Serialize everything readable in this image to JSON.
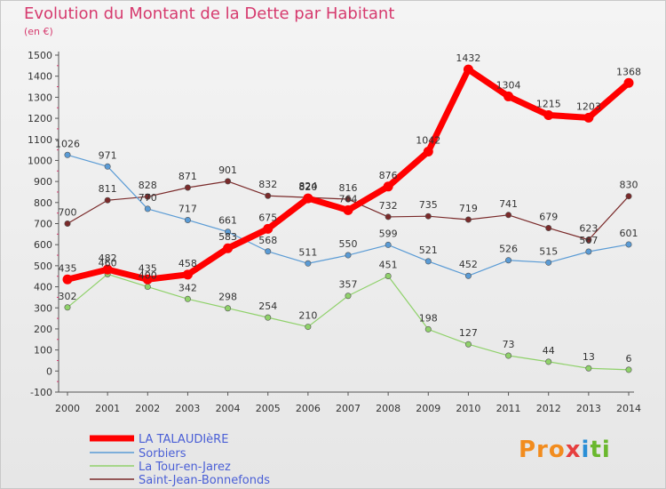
{
  "chart_data": {
    "type": "line",
    "title": "Evolution du Montant de la Dette par Habitant",
    "subtitle": "(en €)",
    "x": [
      "2000",
      "2001",
      "2002",
      "2003",
      "2004",
      "2005",
      "2006",
      "2007",
      "2008",
      "2009",
      "2010",
      "2011",
      "2012",
      "2013",
      "2014"
    ],
    "ylim": [
      -100,
      1500
    ],
    "yticks": [
      -100,
      0,
      100,
      200,
      300,
      400,
      500,
      600,
      700,
      800,
      900,
      1000,
      1100,
      1200,
      1300,
      1400,
      1500
    ],
    "grid": false,
    "legend_position": "bottom-left",
    "series": [
      {
        "name": "LA TALAUDIèRE",
        "color": "#ff0000",
        "values": [
          435,
          482,
          435,
          458,
          583,
          675,
          820,
          764,
          876,
          1042,
          1432,
          1304,
          1215,
          1203,
          1368
        ]
      },
      {
        "name": "Sorbiers",
        "color": "#5a9bd5",
        "values": [
          1026,
          971,
          770,
          717,
          661,
          568,
          511,
          550,
          599,
          521,
          452,
          526,
          515,
          567,
          601
        ]
      },
      {
        "name": "La Tour-en-Jarez",
        "color": "#8fd16a",
        "values": [
          302,
          460,
          400,
          342,
          298,
          254,
          210,
          357,
          451,
          198,
          127,
          73,
          44,
          13,
          6
        ]
      },
      {
        "name": "Saint-Jean-Bonnefonds",
        "color": "#7a2a2a",
        "values": [
          700,
          811,
          828,
          871,
          901,
          832,
          824,
          816,
          732,
          735,
          719,
          741,
          679,
          623,
          830
        ]
      }
    ],
    "data_labels": {
      "LA TALAUDIèRE": [
        "435",
        "482",
        "435",
        "458",
        "583",
        "675",
        "820",
        "764",
        "876",
        "1042",
        "1432",
        "1304",
        "1215",
        "1203",
        "1368"
      ],
      "Sorbiers": [
        "1026",
        "971",
        "770",
        "717",
        "661",
        "568",
        "511",
        "550",
        "599",
        "521",
        "452",
        "526",
        "515",
        "567",
        "601"
      ],
      "La Tour-en-Jarez": [
        "302",
        "460",
        "400",
        "342",
        "298",
        "254",
        "210",
        "357",
        "451",
        "198",
        "127",
        "73",
        "44",
        "13",
        "6"
      ],
      "Saint-Jean-Bonnefonds": [
        "700",
        "811",
        "828",
        "871",
        "901",
        "832",
        "824",
        "816",
        "732",
        "735",
        "719",
        "741",
        "679",
        "623",
        "830"
      ]
    }
  },
  "logo": {
    "parts": [
      "Pro",
      "x",
      "i",
      "ti"
    ]
  }
}
